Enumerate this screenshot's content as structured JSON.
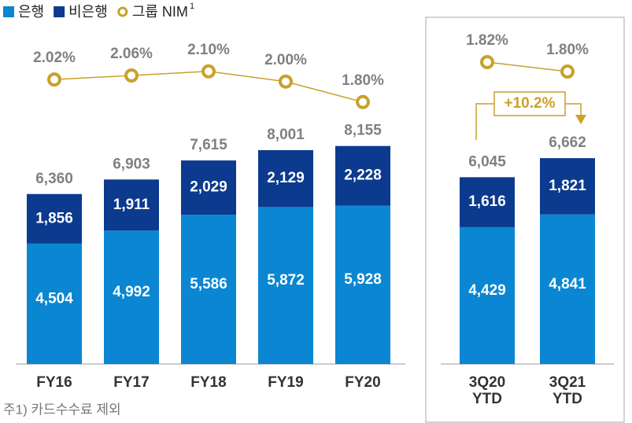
{
  "chart_data": [
    {
      "type": "bar",
      "stacked": true,
      "categories": [
        "FY16",
        "FY17",
        "FY18",
        "FY19",
        "FY20"
      ],
      "ylim": [
        0,
        10000
      ],
      "y2lim": [
        -0.76,
        2.49
      ],
      "series": [
        {
          "name": "은행",
          "color": "#0a86d2",
          "values": [
            4504,
            4992,
            5586,
            5872,
            5928
          ],
          "value_labels": [
            "4,504",
            "4,992",
            "5,586",
            "5,872",
            "5,928"
          ]
        },
        {
          "name": "비은행",
          "color": "#0b3a8e",
          "values": [
            1856,
            1911,
            2029,
            2129,
            2228
          ],
          "value_labels": [
            "1,856",
            "1,911",
            "2,029",
            "2,129",
            "2,228"
          ]
        },
        {
          "name": "그룹 NIM",
          "color": "#c9a12b",
          "axis": "y2",
          "values": [
            2.02,
            2.06,
            2.1,
            2.0,
            1.8
          ],
          "value_labels": [
            "2.02%",
            "2.06%",
            "2.10%",
            "2.00%",
            "1.80%"
          ]
        }
      ],
      "totals": [
        6360,
        6903,
        7615,
        8001,
        8155
      ],
      "total_labels": [
        "6,360",
        "6,903",
        "7,615",
        "8,001",
        "8,155"
      ]
    },
    {
      "type": "bar",
      "stacked": true,
      "categories": [
        "3Q20\nYTD",
        "3Q21\nYTD"
      ],
      "ylim": [
        0,
        8650
      ],
      "y2lim": [
        1.18,
        1.885
      ],
      "series": [
        {
          "color": "#0a86d2",
          "values": [
            4429,
            4841
          ],
          "value_labels": [
            "4,429",
            "4,841"
          ]
        },
        {
          "color": "#0b3a8e",
          "values": [
            1616,
            1821
          ],
          "value_labels": [
            "1,616",
            "1,821"
          ]
        },
        {
          "color": "#c9a12b",
          "axis": "y2",
          "values": [
            1.82,
            1.8
          ],
          "value_labels": [
            "1.82%",
            "1.80%"
          ]
        }
      ],
      "totals": [
        6045,
        6662
      ],
      "total_labels": [
        "6,045",
        "6,662"
      ],
      "annotation": "+10.2%"
    }
  ],
  "legend_note": "1",
  "footnote": "주1) 카드수수료 제외"
}
